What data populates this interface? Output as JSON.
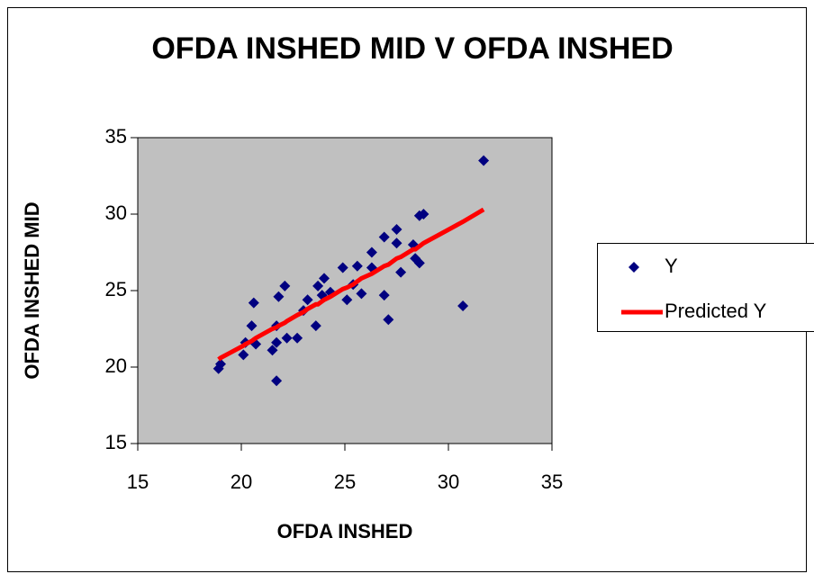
{
  "chart_data": {
    "type": "scatter",
    "title": "OFDA INSHED MID V OFDA INSHED",
    "x_label": "OFDA INSHED",
    "y_label": "OFDA INSHED MID",
    "x": [
      18.9,
      19.0,
      20.1,
      20.2,
      20.5,
      20.6,
      20.7,
      21.5,
      21.7,
      21.7,
      21.7,
      21.8,
      22.1,
      22.2,
      22.7,
      23.0,
      23.2,
      23.6,
      23.7,
      23.9,
      24.0,
      24.3,
      24.9,
      25.1,
      25.4,
      25.6,
      25.8,
      26.3,
      26.3,
      26.9,
      26.9,
      27.1,
      27.5,
      27.5,
      27.7,
      28.3,
      28.4,
      28.6,
      28.6,
      28.8,
      30.7,
      31.7
    ],
    "series": [
      {
        "name": "Y",
        "color": "#000080",
        "marker": "diamond",
        "values": [
          19.9,
          20.2,
          20.8,
          21.6,
          22.7,
          24.2,
          21.5,
          21.1,
          19.1,
          21.6,
          22.7,
          24.6,
          25.3,
          21.9,
          21.9,
          23.7,
          24.4,
          22.7,
          25.3,
          24.7,
          25.8,
          24.9,
          26.5,
          24.4,
          25.4,
          26.6,
          24.8,
          27.5,
          26.5,
          28.5,
          24.7,
          23.1,
          29.0,
          28.1,
          26.2,
          28.0,
          27.1,
          26.8,
          29.9,
          30.0,
          24.0,
          33.5
        ]
      },
      {
        "name": "Predicted Y",
        "color": "#ff0000",
        "marker": "line",
        "values": [
          20.5,
          20.6,
          21.4,
          21.5,
          21.7,
          21.8,
          21.9,
          22.5,
          22.6,
          22.6,
          22.6,
          22.7,
          22.9,
          23.0,
          23.4,
          23.6,
          23.8,
          24.1,
          24.1,
          24.3,
          24.4,
          24.6,
          25.1,
          25.2,
          25.4,
          25.6,
          25.8,
          26.1,
          26.1,
          26.6,
          26.6,
          26.7,
          27.1,
          27.1,
          27.2,
          27.7,
          27.7,
          27.9,
          27.9,
          28.1,
          29.5,
          30.3
        ]
      }
    ],
    "xlim": [
      15,
      35
    ],
    "xticks": [
      15,
      20,
      25,
      30,
      35
    ],
    "ylim": [
      15,
      35
    ],
    "yticks": [
      15,
      20,
      25,
      30,
      35
    ],
    "grid": false,
    "plot_background": "#c0c0c0",
    "legend": "right"
  }
}
